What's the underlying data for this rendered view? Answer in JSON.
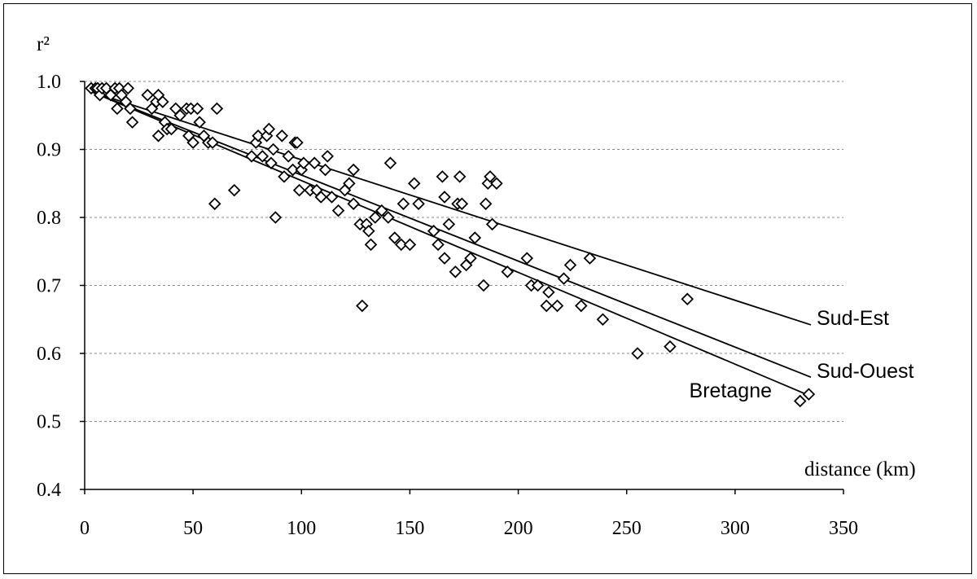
{
  "chart_data": {
    "type": "scatter",
    "title": "",
    "xlabel": "distance (km)",
    "ylabel": "r²",
    "xlim": [
      0,
      350
    ],
    "ylim": [
      0.4,
      1.0
    ],
    "x_ticks": [
      "0",
      "50",
      "100",
      "150",
      "200",
      "250",
      "300",
      "350"
    ],
    "y_ticks": [
      "0.4",
      "0.5",
      "0.6",
      "0.7",
      "0.8",
      "0.9",
      "1.0"
    ],
    "grid": "horizontal dashed",
    "marker": "open diamond",
    "points": [
      [
        3,
        0.99
      ],
      [
        5,
        0.99
      ],
      [
        6,
        0.99
      ],
      [
        7,
        0.98
      ],
      [
        8,
        0.99
      ],
      [
        10,
        0.99
      ],
      [
        12,
        0.98
      ],
      [
        14,
        0.99
      ],
      [
        15,
        0.96
      ],
      [
        16,
        0.99
      ],
      [
        17,
        0.98
      ],
      [
        19,
        0.97
      ],
      [
        20,
        0.99
      ],
      [
        21,
        0.96
      ],
      [
        22,
        0.94
      ],
      [
        29,
        0.98
      ],
      [
        31,
        0.96
      ],
      [
        33,
        0.97
      ],
      [
        34,
        0.98
      ],
      [
        34,
        0.92
      ],
      [
        36,
        0.97
      ],
      [
        37,
        0.94
      ],
      [
        38,
        0.93
      ],
      [
        40,
        0.93
      ],
      [
        42,
        0.96
      ],
      [
        44,
        0.95
      ],
      [
        47,
        0.96
      ],
      [
        48,
        0.92
      ],
      [
        49,
        0.96
      ],
      [
        50,
        0.91
      ],
      [
        52,
        0.96
      ],
      [
        53,
        0.94
      ],
      [
        55,
        0.92
      ],
      [
        57,
        0.91
      ],
      [
        59,
        0.91
      ],
      [
        60,
        0.82
      ],
      [
        61,
        0.96
      ],
      [
        69,
        0.84
      ],
      [
        77,
        0.89
      ],
      [
        79,
        0.91
      ],
      [
        80,
        0.92
      ],
      [
        82,
        0.89
      ],
      [
        84,
        0.92
      ],
      [
        85,
        0.93
      ],
      [
        86,
        0.88
      ],
      [
        87,
        0.9
      ],
      [
        88,
        0.8
      ],
      [
        91,
        0.92
      ],
      [
        92,
        0.86
      ],
      [
        94,
        0.89
      ],
      [
        96,
        0.87
      ],
      [
        97,
        0.91
      ],
      [
        98,
        0.91
      ],
      [
        99,
        0.84
      ],
      [
        100,
        0.87
      ],
      [
        101,
        0.88
      ],
      [
        104,
        0.84
      ],
      [
        106,
        0.88
      ],
      [
        107,
        0.84
      ],
      [
        109,
        0.83
      ],
      [
        111,
        0.87
      ],
      [
        112,
        0.89
      ],
      [
        114,
        0.83
      ],
      [
        117,
        0.81
      ],
      [
        120,
        0.84
      ],
      [
        122,
        0.85
      ],
      [
        124,
        0.87
      ],
      [
        124,
        0.82
      ],
      [
        127,
        0.79
      ],
      [
        128,
        0.67
      ],
      [
        130,
        0.79
      ],
      [
        131,
        0.78
      ],
      [
        132,
        0.76
      ],
      [
        134,
        0.8
      ],
      [
        137,
        0.81
      ],
      [
        140,
        0.8
      ],
      [
        141,
        0.88
      ],
      [
        143,
        0.77
      ],
      [
        146,
        0.76
      ],
      [
        147,
        0.82
      ],
      [
        150,
        0.76
      ],
      [
        152,
        0.85
      ],
      [
        154,
        0.82
      ],
      [
        161,
        0.78
      ],
      [
        163,
        0.76
      ],
      [
        165,
        0.86
      ],
      [
        166,
        0.83
      ],
      [
        166,
        0.74
      ],
      [
        168,
        0.79
      ],
      [
        171,
        0.72
      ],
      [
        172,
        0.82
      ],
      [
        173,
        0.86
      ],
      [
        174,
        0.82
      ],
      [
        176,
        0.73
      ],
      [
        178,
        0.74
      ],
      [
        180,
        0.77
      ],
      [
        184,
        0.7
      ],
      [
        185,
        0.82
      ],
      [
        186,
        0.85
      ],
      [
        187,
        0.86
      ],
      [
        188,
        0.79
      ],
      [
        190,
        0.85
      ],
      [
        195,
        0.72
      ],
      [
        204,
        0.74
      ],
      [
        206,
        0.7
      ],
      [
        209,
        0.7
      ],
      [
        213,
        0.67
      ],
      [
        214,
        0.69
      ],
      [
        218,
        0.67
      ],
      [
        221,
        0.71
      ],
      [
        224,
        0.73
      ],
      [
        229,
        0.67
      ],
      [
        233,
        0.74
      ],
      [
        239,
        0.65
      ],
      [
        255,
        0.6
      ],
      [
        270,
        0.61
      ],
      [
        278,
        0.68
      ],
      [
        330,
        0.53
      ],
      [
        334,
        0.54
      ]
    ],
    "series": [
      {
        "name": "Sud-Est",
        "x": [
          3,
          335
        ],
        "y": [
          0.985,
          0.642
        ]
      },
      {
        "name": "Sud-Ouest",
        "x": [
          3,
          335
        ],
        "y": [
          0.985,
          0.565
        ]
      },
      {
        "name": "Bretagne",
        "x": [
          3,
          335
        ],
        "y": [
          0.985,
          0.537
        ]
      }
    ]
  }
}
